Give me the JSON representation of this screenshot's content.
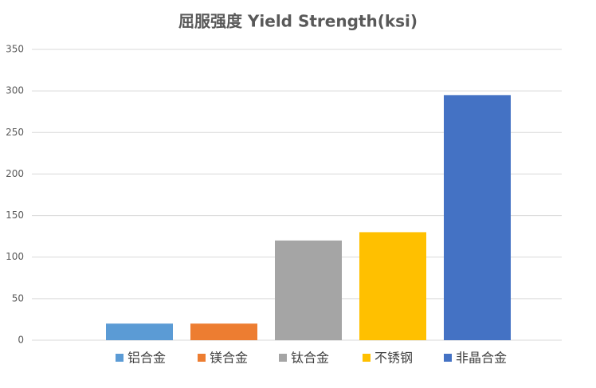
{
  "chart_data": {
    "type": "bar",
    "title": "屈服强度 Yield Strength(ksi)",
    "series": [
      {
        "name": "铝合金",
        "color": "#5b9bd5",
        "values": [
          20
        ]
      },
      {
        "name": "镁合金",
        "color": "#ed7d31",
        "values": [
          20
        ]
      },
      {
        "name": "钛合金",
        "color": "#a5a5a5",
        "values": [
          120
        ]
      },
      {
        "name": "不锈钢",
        "color": "#ffc000",
        "values": [
          130
        ]
      },
      {
        "name": "非晶合金",
        "color": "#4472c4",
        "values": [
          295
        ]
      }
    ],
    "ylim": [
      0,
      350
    ],
    "yticks": [
      0,
      50,
      100,
      150,
      200,
      250,
      300,
      350
    ],
    "grid": true
  }
}
